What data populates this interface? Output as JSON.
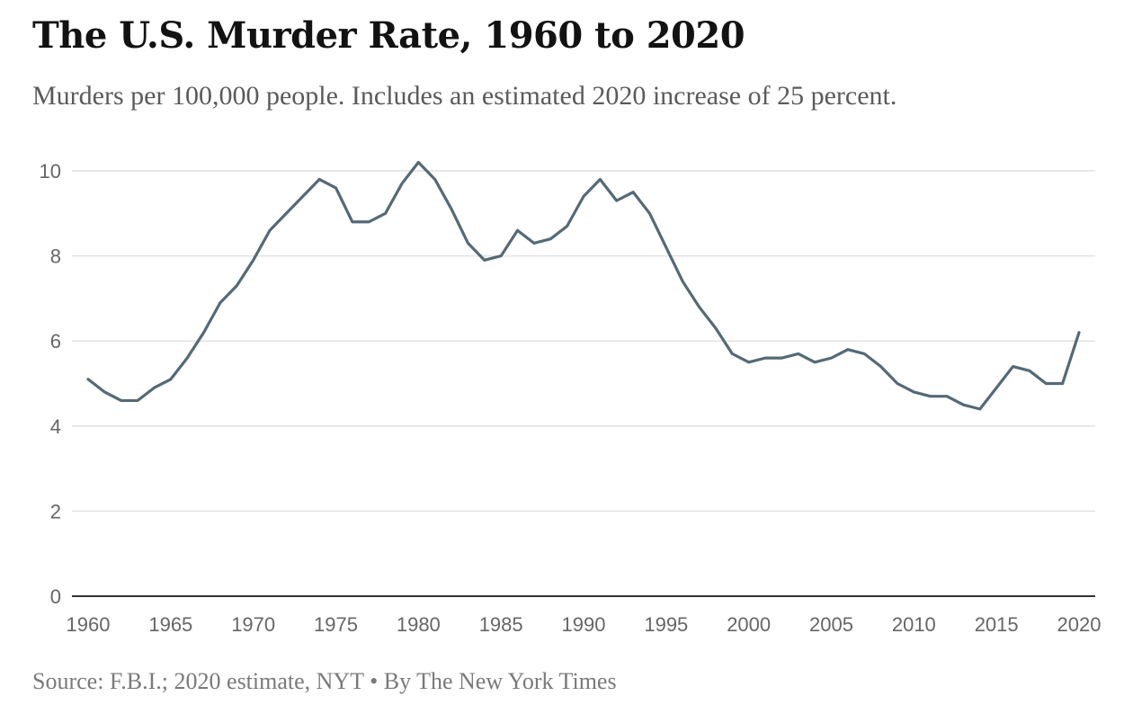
{
  "header": {
    "title": "The U.S. Murder Rate, 1960 to 2020",
    "subtitle": "Murders per 100,000 people. Includes an estimated 2020 increase of 25 percent."
  },
  "footer": {
    "source": "Source: F.B.I.; 2020 estimate, NYT • By The New York Times"
  },
  "colors": {
    "line": "#546a76",
    "grid": "#e2e2e2",
    "axis": "#333333"
  },
  "chart_data": {
    "type": "line",
    "title": "The U.S. Murder Rate, 1960 to 2020",
    "subtitle": "Murders per 100,000 people. Includes an estimated 2020 increase of 25 percent.",
    "xlabel": "",
    "ylabel": "",
    "xlim": [
      1960,
      2020
    ],
    "ylim": [
      0,
      10
    ],
    "grid": true,
    "x_ticks": [
      1960,
      1965,
      1970,
      1975,
      1980,
      1985,
      1990,
      1995,
      2000,
      2005,
      2010,
      2015,
      2020
    ],
    "y_ticks": [
      0,
      2,
      4,
      6,
      8,
      10
    ],
    "x": [
      1960,
      1961,
      1962,
      1963,
      1964,
      1965,
      1966,
      1967,
      1968,
      1969,
      1970,
      1971,
      1972,
      1973,
      1974,
      1975,
      1976,
      1977,
      1978,
      1979,
      1980,
      1981,
      1982,
      1983,
      1984,
      1985,
      1986,
      1987,
      1988,
      1989,
      1990,
      1991,
      1992,
      1993,
      1994,
      1995,
      1996,
      1997,
      1998,
      1999,
      2000,
      2001,
      2002,
      2003,
      2004,
      2005,
      2006,
      2007,
      2008,
      2009,
      2010,
      2011,
      2012,
      2013,
      2014,
      2015,
      2016,
      2017,
      2018,
      2019,
      2020
    ],
    "series": [
      {
        "values": [
          5.1,
          4.8,
          4.6,
          4.6,
          4.9,
          5.1,
          5.6,
          6.2,
          6.9,
          7.3,
          7.9,
          8.6,
          9.0,
          9.4,
          9.8,
          9.6,
          8.8,
          8.8,
          9.0,
          9.7,
          10.2,
          9.8,
          9.1,
          8.3,
          7.9,
          8.0,
          8.6,
          8.3,
          8.4,
          8.7,
          9.4,
          9.8,
          9.3,
          9.5,
          9.0,
          8.2,
          7.4,
          6.8,
          6.3,
          5.7,
          5.5,
          5.6,
          5.6,
          5.7,
          5.5,
          5.6,
          5.8,
          5.7,
          5.4,
          5.0,
          4.8,
          4.7,
          4.7,
          4.5,
          4.4,
          4.9,
          5.4,
          5.3,
          5.0,
          5.0,
          6.2
        ]
      }
    ]
  }
}
